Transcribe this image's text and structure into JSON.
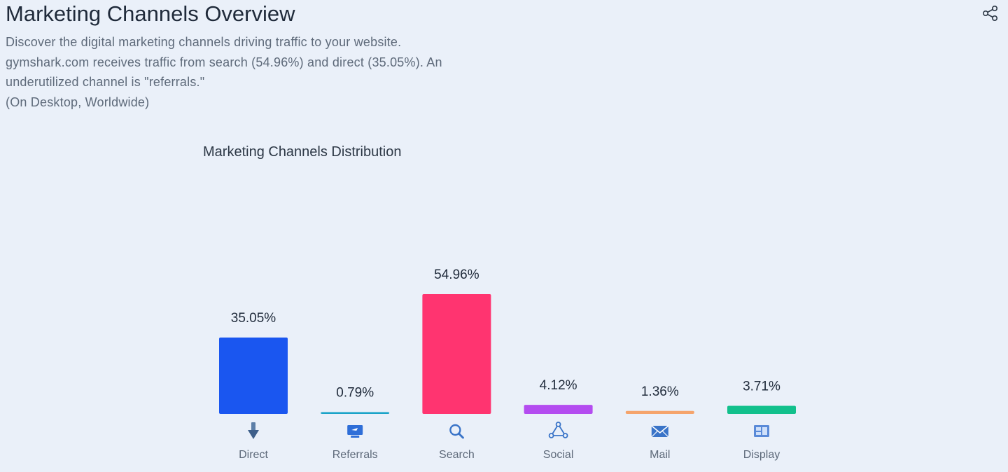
{
  "header": {
    "title": "Marketing Channels Overview",
    "share_icon": "share-icon",
    "description_lines": [
      "Discover the digital marketing channels driving traffic to your website.",
      "gymshark.com receives traffic from search (54.96%) and direct (35.05%). An",
      "underutilized channel is \"referrals.\"",
      "(On Desktop, Worldwide)"
    ]
  },
  "chart_data": {
    "type": "bar",
    "title": "Marketing Channels Distribution",
    "categories": [
      "Direct",
      "Referrals",
      "Search",
      "Social",
      "Mail",
      "Display"
    ],
    "values": [
      35.05,
      0.79,
      54.96,
      4.12,
      1.36,
      3.71
    ],
    "value_labels": [
      "35.05%",
      "0.79%",
      "54.96%",
      "4.12%",
      "1.36%",
      "3.71%"
    ],
    "colors": [
      "#1a56f0",
      "#1aa3c8",
      "#ff3470",
      "#b44cf0",
      "#f5a46c",
      "#12c08c"
    ],
    "icons": [
      "arrow-down-icon",
      "monitor-icon",
      "search-icon",
      "social-icon",
      "mail-icon",
      "display-icon"
    ],
    "xlabel": "",
    "ylabel": "",
    "grid": false,
    "legend": "none"
  }
}
